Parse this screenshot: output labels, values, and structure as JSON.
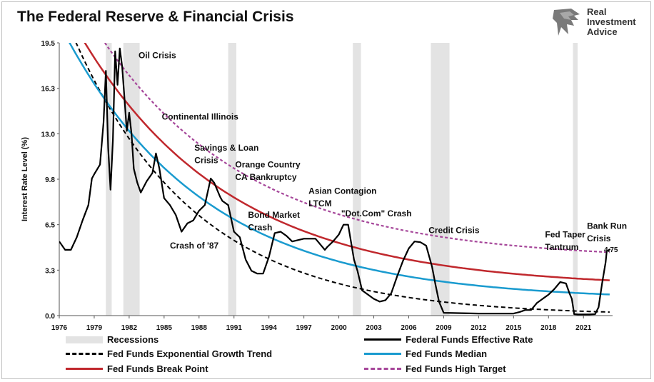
{
  "title": "The Federal Reserve & Financial Crisis",
  "logo": {
    "line1": "Real",
    "line2": "Investment",
    "line3": "Advice"
  },
  "colors": {
    "effective": "#000000",
    "trend": "#000000",
    "median": "#1a9bcf",
    "breakpoint": "#c0282d",
    "hightarget": "#a6479a",
    "recession": "#e3e3e3"
  },
  "chart_data": {
    "type": "line",
    "ylabel": "Interest Rate Level (%)",
    "xlabel": "",
    "ylim": [
      0,
      19.5
    ],
    "yticks": [
      "19.5",
      "16.3",
      "13.0",
      "9.8",
      "6.5",
      "3.3",
      "0.0"
    ],
    "ytick_values": [
      19.5,
      16.25,
      13.0,
      9.75,
      6.5,
      3.25,
      0.0
    ],
    "xlim": [
      1976,
      2023.5
    ],
    "xticks": [
      "1976",
      "1979",
      "1982",
      "1985",
      "1988",
      "1991",
      "1994",
      "1997",
      "2000",
      "2003",
      "2006",
      "2009",
      "2012",
      "2015",
      "2018",
      "2021"
    ],
    "recessions": [
      [
        1980.0,
        1980.5
      ],
      [
        1981.5,
        1982.9
      ],
      [
        1990.5,
        1991.2
      ],
      [
        2001.2,
        2001.9
      ],
      [
        2007.9,
        2009.5
      ],
      [
        2020.1,
        2020.5
      ]
    ],
    "series": [
      {
        "name": "Federal Funds Effective Rate",
        "style": "solid-black",
        "x": [
          1976,
          1976.5,
          1977,
          1977.5,
          1978,
          1978.5,
          1978.8,
          1979,
          1979.5,
          1979.8,
          1980,
          1980.2,
          1980.4,
          1980.6,
          1980.8,
          1981,
          1981.2,
          1981.4,
          1981.6,
          1981.8,
          1982,
          1982.2,
          1982.4,
          1982.7,
          1983,
          1983.5,
          1984,
          1984.3,
          1984.6,
          1985,
          1985.5,
          1986,
          1986.5,
          1987,
          1987.5,
          1988,
          1988.5,
          1989,
          1989.3,
          1989.8,
          1990,
          1990.5,
          1991,
          1991.5,
          1992,
          1992.5,
          1993,
          1993.5,
          1994,
          1994.5,
          1995,
          1995.5,
          1996,
          1997,
          1998,
          1998.8,
          1999,
          1999.5,
          2000,
          2000.4,
          2000.8,
          2001,
          2001.3,
          2001.6,
          2002,
          2003,
          2003.5,
          2004,
          2004.5,
          2005,
          2005.5,
          2006,
          2006.5,
          2007,
          2007.5,
          2008,
          2008.3,
          2008.6,
          2009,
          2012,
          2015,
          2015.5,
          2016,
          2016.5,
          2017,
          2017.5,
          2018,
          2018.5,
          2019,
          2019.5,
          2019.8,
          2020,
          2020.2,
          2020.5,
          2021,
          2021.5,
          2022,
          2022.3,
          2022.6,
          2022.9,
          2023,
          2023.3
        ],
        "y": [
          5.3,
          4.7,
          4.7,
          5.6,
          6.8,
          7.9,
          9.8,
          10.1,
          10.8,
          13.8,
          17.5,
          12.0,
          9.0,
          12.5,
          18.9,
          16.5,
          19.1,
          17.8,
          15.5,
          13.2,
          14.5,
          13.0,
          10.5,
          9.5,
          8.8,
          9.6,
          10.2,
          11.6,
          10.5,
          8.4,
          7.9,
          7.2,
          6.0,
          6.6,
          6.8,
          7.5,
          7.9,
          9.8,
          9.5,
          8.5,
          8.2,
          7.9,
          6.0,
          5.6,
          4.0,
          3.2,
          3.0,
          3.0,
          4.2,
          5.9,
          6.0,
          5.7,
          5.3,
          5.5,
          5.5,
          4.7,
          4.9,
          5.3,
          5.8,
          6.5,
          6.5,
          5.5,
          4.0,
          3.2,
          1.8,
          1.2,
          1.0,
          1.1,
          1.6,
          2.8,
          3.9,
          4.8,
          5.3,
          5.25,
          5.0,
          3.5,
          2.2,
          1.0,
          0.2,
          0.15,
          0.15,
          0.25,
          0.4,
          0.4,
          0.9,
          1.2,
          1.5,
          1.9,
          2.4,
          2.3,
          1.6,
          1.2,
          0.1,
          0.08,
          0.08,
          0.08,
          0.1,
          0.6,
          2.3,
          3.8,
          4.6,
          4.75
        ]
      },
      {
        "name": "Fed Funds Exponential Growth Trend",
        "style": "dashed-black",
        "fn": "trend"
      },
      {
        "name": "Fed Funds Median",
        "style": "solid-blue",
        "fn": "median"
      },
      {
        "name": "Fed Funds Break Point",
        "style": "solid-red",
        "fn": "breakpoint"
      },
      {
        "name": "Fed Funds High Target",
        "style": "dashed-purple",
        "fn": "hightarget"
      }
    ],
    "legend": [
      "Recessions",
      "Federal Funds Effective Rate",
      "Fed Funds Exponential Growth Trend",
      "Fed Funds Median",
      "Fed Funds Break Point",
      "Fed Funds High Target"
    ],
    "annotations": [
      {
        "text": "Oil Crisis",
        "x": 1982.8,
        "y": 18.4
      },
      {
        "text": "Continental Illinois",
        "x": 1984.8,
        "y": 14.0
      },
      {
        "text": "Savings & Loan",
        "x": 1987.6,
        "y": 11.8
      },
      {
        "text": "Crisis",
        "x": 1987.6,
        "y": 10.9
      },
      {
        "text": "Orange Country",
        "x": 1991.1,
        "y": 10.6
      },
      {
        "text": "CA Bankruptcy",
        "x": 1991.1,
        "y": 9.7
      },
      {
        "text": "Asian Contagion",
        "x": 1997.4,
        "y": 8.7
      },
      {
        "text": "LTCM",
        "x": 1997.4,
        "y": 7.8
      },
      {
        "text": "Bond Market",
        "x": 1992.2,
        "y": 7.0
      },
      {
        "text": "Crash",
        "x": 1992.2,
        "y": 6.1
      },
      {
        "text": "\"Dot.Com\" Crash",
        "x": 2000.2,
        "y": 7.1
      },
      {
        "text": "Crash of '87",
        "x": 1985.5,
        "y": 4.8
      },
      {
        "text": "Credit Crisis",
        "x": 2007.7,
        "y": 5.9
      },
      {
        "text": "Fed Taper",
        "x": 2017.7,
        "y": 5.6
      },
      {
        "text": "Tantrum",
        "x": 2017.7,
        "y": 4.7
      },
      {
        "text": "Bank Run",
        "x": 2021.3,
        "y": 6.2
      },
      {
        "text": "Crisis",
        "x": 2021.3,
        "y": 5.3
      },
      {
        "text": "4.75",
        "x": 2023.5,
        "y": 4.55
      }
    ]
  }
}
